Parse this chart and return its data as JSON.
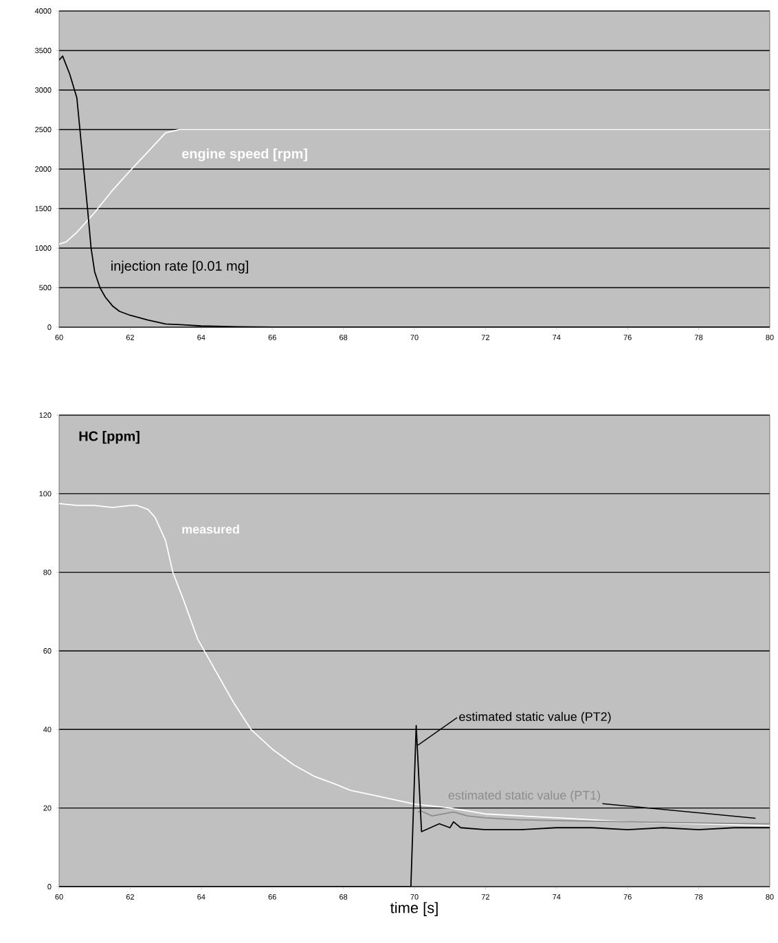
{
  "chart_data": [
    {
      "type": "line",
      "xlim": [
        60,
        80
      ],
      "xticks": [
        60,
        62,
        64,
        66,
        68,
        70,
        72,
        74,
        76,
        78,
        80
      ],
      "ylim": [
        0,
        4000
      ],
      "yticks": [
        0,
        500,
        1000,
        1500,
        2000,
        2500,
        3000,
        3500,
        4000
      ],
      "grid": "y",
      "series": [
        {
          "name": "engine speed [rpm]",
          "color": "#ffffff",
          "x": [
            60,
            60.2,
            60.5,
            61,
            61.5,
            62,
            62.5,
            63,
            63.4,
            64,
            66,
            68,
            70,
            72,
            74,
            76,
            78,
            80
          ],
          "values": [
            1050,
            1080,
            1200,
            1450,
            1730,
            1980,
            2220,
            2460,
            2500,
            2500,
            2500,
            2500,
            2500,
            2500,
            2500,
            2500,
            2500,
            2500
          ]
        },
        {
          "name": "injection rate [0.01 mg]",
          "color": "#000000",
          "x": [
            60,
            60.1,
            60.3,
            60.5,
            60.65,
            60.8,
            60.9,
            61.0,
            61.15,
            61.3,
            61.5,
            61.7,
            62.0,
            62.5,
            63,
            63.5,
            64,
            65,
            66,
            68,
            70,
            72,
            74,
            76,
            78,
            80
          ],
          "values": [
            3380,
            3430,
            3200,
            2900,
            2200,
            1500,
            1000,
            700,
            500,
            380,
            270,
            200,
            150,
            90,
            40,
            30,
            15,
            5,
            0,
            0,
            0,
            0,
            0,
            0,
            0,
            0
          ]
        }
      ]
    },
    {
      "type": "line",
      "title": "HC [ppm]",
      "xlabel": "time [s]",
      "xlim": [
        60,
        80
      ],
      "xticks": [
        60,
        62,
        64,
        66,
        68,
        70,
        72,
        74,
        76,
        78,
        80
      ],
      "ylim": [
        0,
        120
      ],
      "yticks": [
        0,
        20,
        40,
        60,
        80,
        100,
        120
      ],
      "grid": "y",
      "series": [
        {
          "name": "measured",
          "color": "#ffffff",
          "x": [
            60,
            60.5,
            61,
            61.5,
            62,
            62.2,
            62.5,
            62.7,
            63,
            63.2,
            63.5,
            63.9,
            64.4,
            64.9,
            65.4,
            66,
            66.6,
            67.2,
            67.8,
            68.2,
            69,
            70,
            71,
            72,
            74,
            76,
            78,
            80
          ],
          "values": [
            97.5,
            97,
            97,
            96.5,
            97,
            97,
            96,
            94,
            88,
            80,
            73,
            63,
            55,
            47,
            40,
            35,
            31,
            28,
            26,
            24.5,
            23,
            21,
            20,
            18.5,
            17.5,
            16.5,
            16,
            15.5
          ]
        },
        {
          "name": "estimated static value (PT1)",
          "color": "#8c8c8c",
          "x": [
            70.1,
            70.2,
            70.5,
            71.1,
            71.5,
            72,
            73,
            74,
            76,
            78,
            80
          ],
          "values": [
            19,
            19.2,
            18,
            19,
            18,
            17.5,
            17,
            16.8,
            16.5,
            16.2,
            16
          ]
        },
        {
          "name": "estimated static value (PT2)",
          "color": "#000000",
          "x": [
            60,
            69.9,
            70.05,
            70.2,
            70.7,
            71,
            71.1,
            71.3,
            72,
            73,
            74,
            75,
            76,
            77,
            78,
            79,
            80
          ],
          "values": [
            0,
            0,
            41,
            14,
            16,
            15,
            16.5,
            15,
            14.5,
            14.5,
            15,
            15,
            14.5,
            15,
            14.5,
            15,
            15
          ]
        }
      ]
    }
  ]
}
